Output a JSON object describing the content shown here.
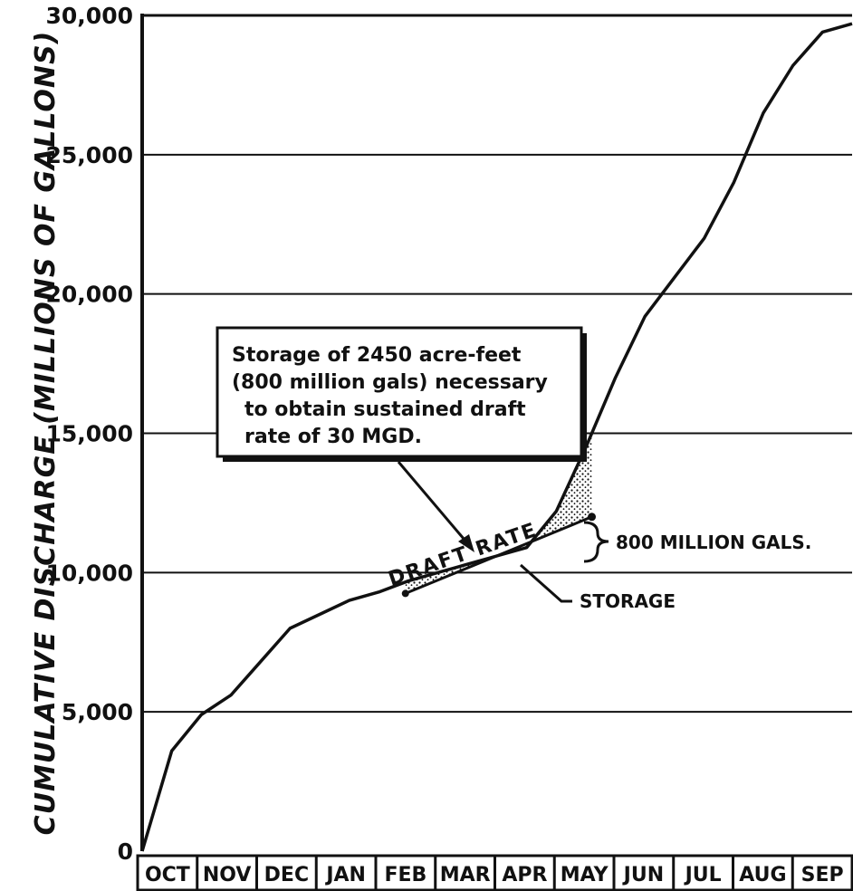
{
  "chart_data": {
    "type": "line",
    "ylabel": "CUMULATIVE DISCHARGE (MILLIONS OF GALLONS)",
    "xlabel": "",
    "title": "",
    "ylim": [
      0,
      30000
    ],
    "yticks": [
      "0",
      "5,000",
      "10,000",
      "15,000",
      "20,000",
      "25,000",
      "30,000"
    ],
    "ytick_values": [
      0,
      5000,
      10000,
      15000,
      20000,
      25000,
      30000
    ],
    "months": [
      "OCT",
      "NOV",
      "DEC",
      "JAN",
      "FEB",
      "MAR",
      "APR",
      "MAY",
      "JUN",
      "JUL",
      "AUG",
      "SEP"
    ],
    "grid": "horizontal",
    "series": [
      {
        "x": [
          0,
          0.5,
          1.0,
          1.5,
          2.0,
          2.5,
          3.0,
          3.5,
          4.0,
          4.5,
          5.0,
          5.5,
          6.0,
          6.5,
          7.0,
          7.5,
          8.0,
          8.5,
          9.0,
          9.5,
          10.0,
          10.5,
          11.0,
          11.5,
          12.0
        ],
        "y": [
          0,
          3600,
          4900,
          5600,
          6800,
          8000,
          8500,
          9000,
          9300,
          9700,
          10000,
          10300,
          10600,
          10900,
          12200,
          14500,
          17000,
          19200,
          20600,
          22000,
          24000,
          26500,
          28200,
          29400,
          29700
        ]
      }
    ],
    "draft_rate_line": {
      "x": [
        4.45,
        7.6
      ],
      "y": [
        9250,
        12000
      ]
    },
    "annotations": {
      "box_lines": [
        "Storage of 2450 acre-feet",
        "(800 million gals) necessary",
        "to obtain sustained draft",
        "rate of 30 MGD."
      ],
      "draft_rate": "DRAFT RATE",
      "storage": "STORAGE",
      "bracket": "800 MILLION GALS."
    }
  }
}
